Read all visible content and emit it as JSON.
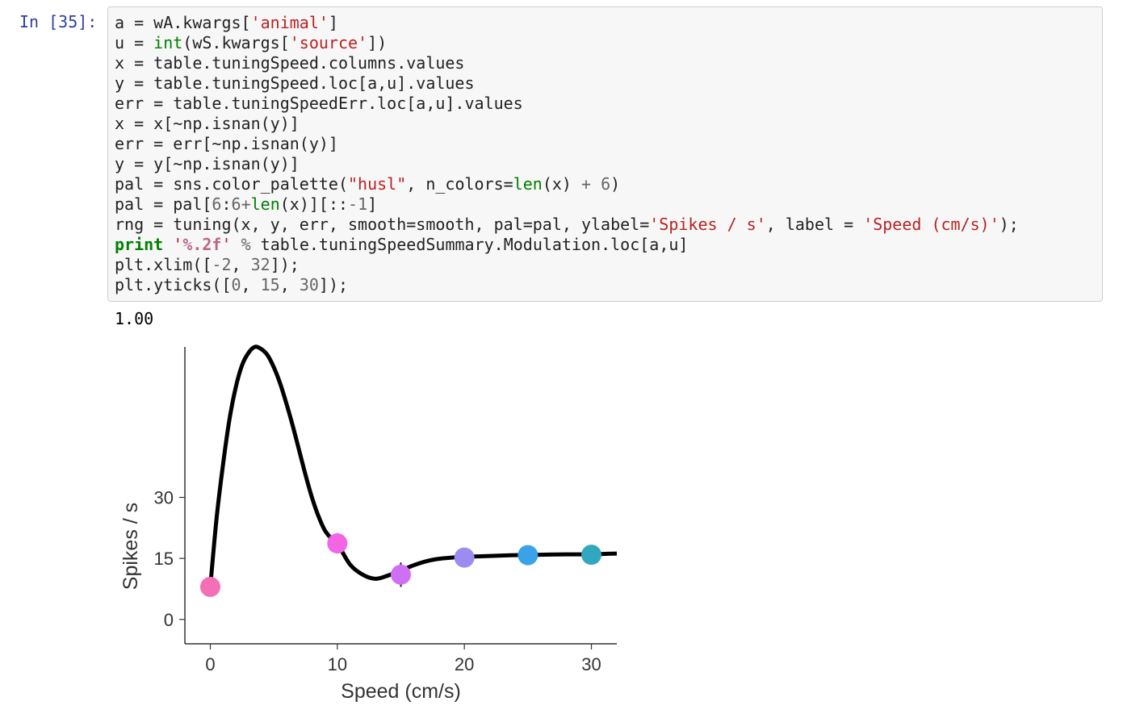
{
  "cell": {
    "prompt": "In [35]:",
    "code_lines": [
      [
        {
          "t": "plain",
          "v": "a = wA.kwargs["
        },
        {
          "t": "str",
          "v": "'animal'"
        },
        {
          "t": "plain",
          "v": "]"
        }
      ],
      [
        {
          "t": "plain",
          "v": "u = "
        },
        {
          "t": "builtin",
          "v": "int"
        },
        {
          "t": "plain",
          "v": "(wS.kwargs["
        },
        {
          "t": "str",
          "v": "'source'"
        },
        {
          "t": "plain",
          "v": "])"
        }
      ],
      [
        {
          "t": "plain",
          "v": "x = table.tuningSpeed.columns.values"
        }
      ],
      [
        {
          "t": "plain",
          "v": "y = table.tuningSpeed.loc[a,u].values"
        }
      ],
      [
        {
          "t": "plain",
          "v": "err = table.tuningSpeedErr.loc[a,u].values"
        }
      ],
      [
        {
          "t": "plain",
          "v": "x = x[~np.isnan(y)]"
        }
      ],
      [
        {
          "t": "plain",
          "v": "err = err[~np.isnan(y)]"
        }
      ],
      [
        {
          "t": "plain",
          "v": "y = y[~np.isnan(y)]"
        }
      ],
      [
        {
          "t": "plain",
          "v": "pal = sns.color_palette("
        },
        {
          "t": "str",
          "v": "\"husl\""
        },
        {
          "t": "plain",
          "v": ", n_colors="
        },
        {
          "t": "builtin",
          "v": "len"
        },
        {
          "t": "plain",
          "v": "(x) "
        },
        {
          "t": "op",
          "v": "+"
        },
        {
          "t": "plain",
          "v": " "
        },
        {
          "t": "num",
          "v": "6"
        },
        {
          "t": "plain",
          "v": ")"
        }
      ],
      [
        {
          "t": "plain",
          "v": "pal = pal["
        },
        {
          "t": "num",
          "v": "6"
        },
        {
          "t": "plain",
          "v": ":"
        },
        {
          "t": "num",
          "v": "6"
        },
        {
          "t": "op",
          "v": "+"
        },
        {
          "t": "builtin",
          "v": "len"
        },
        {
          "t": "plain",
          "v": "(x)][::"
        },
        {
          "t": "op",
          "v": "-"
        },
        {
          "t": "num",
          "v": "1"
        },
        {
          "t": "plain",
          "v": "]"
        }
      ],
      [
        {
          "t": "plain",
          "v": "rng = tuning(x, y, err, smooth=smooth, pal=pal, ylabel="
        },
        {
          "t": "str",
          "v": "'Spikes / s'"
        },
        {
          "t": "plain",
          "v": ", label = "
        },
        {
          "t": "str",
          "v": "'Speed (cm/s)'"
        },
        {
          "t": "plain",
          "v": ");"
        }
      ],
      [
        {
          "t": "kw",
          "v": "print"
        },
        {
          "t": "plain",
          "v": " "
        },
        {
          "t": "str",
          "v": "'"
        },
        {
          "t": "fmt",
          "v": "%.2f"
        },
        {
          "t": "str",
          "v": "'"
        },
        {
          "t": "plain",
          "v": " "
        },
        {
          "t": "op",
          "v": "%"
        },
        {
          "t": "plain",
          "v": " table.tuningSpeedSummary.Modulation.loc[a,u]"
        }
      ],
      [
        {
          "t": "plain",
          "v": "plt.xlim(["
        },
        {
          "t": "op",
          "v": "-"
        },
        {
          "t": "num",
          "v": "2"
        },
        {
          "t": "plain",
          "v": ", "
        },
        {
          "t": "num",
          "v": "32"
        },
        {
          "t": "plain",
          "v": "]);"
        }
      ],
      [
        {
          "t": "plain",
          "v": "plt.yticks(["
        },
        {
          "t": "num",
          "v": "0"
        },
        {
          "t": "plain",
          "v": ", "
        },
        {
          "t": "num",
          "v": "15"
        },
        {
          "t": "plain",
          "v": ", "
        },
        {
          "t": "num",
          "v": "30"
        },
        {
          "t": "plain",
          "v": "]);"
        }
      ]
    ],
    "stdout": "1.00"
  },
  "chart_data": {
    "type": "line",
    "title": "",
    "xlabel": "Speed (cm/s)",
    "ylabel": "Spikes / s",
    "xlim": [
      -2,
      32
    ],
    "ylim": [
      -6,
      67
    ],
    "xticks": [
      0,
      10,
      20,
      30
    ],
    "yticks": [
      0,
      15,
      30
    ],
    "grid": false,
    "points": [
      {
        "x": 0,
        "y": 8,
        "err": 2,
        "color": "#f46fb6"
      },
      {
        "x": 10,
        "y": 18.7,
        "err": 2.5,
        "color": "#f266e6"
      },
      {
        "x": 15,
        "y": 11,
        "err": 3,
        "color": "#cf6ff4"
      },
      {
        "x": 20,
        "y": 15.2,
        "err": 1,
        "color": "#9b8cf2"
      },
      {
        "x": 25,
        "y": 15.8,
        "err": 2,
        "color": "#3aa2e8"
      },
      {
        "x": 30,
        "y": 15.9,
        "err": 1,
        "color": "#32a8c0"
      }
    ],
    "smooth_curve": {
      "x": [
        0,
        0.5,
        1,
        1.5,
        2,
        2.5,
        3,
        3.5,
        4,
        4.5,
        5,
        5.5,
        6,
        6.5,
        7,
        7.5,
        8,
        8.5,
        9,
        9.5,
        10,
        11,
        12,
        13,
        14,
        15,
        16,
        17,
        18,
        19,
        20,
        22,
        24,
        26,
        28,
        30,
        32
      ],
      "y": [
        8,
        25,
        38,
        49,
        57,
        62.5,
        65.5,
        67,
        66.5,
        65,
        62,
        58,
        53,
        47.5,
        41.5,
        35.5,
        30,
        25.5,
        22,
        20,
        18.7,
        13.5,
        11,
        10,
        10.8,
        12,
        13.3,
        14.3,
        14.9,
        15.2,
        15.4,
        15.6,
        15.8,
        15.9,
        16,
        16,
        16.2
      ]
    },
    "line_color": "#000000"
  }
}
